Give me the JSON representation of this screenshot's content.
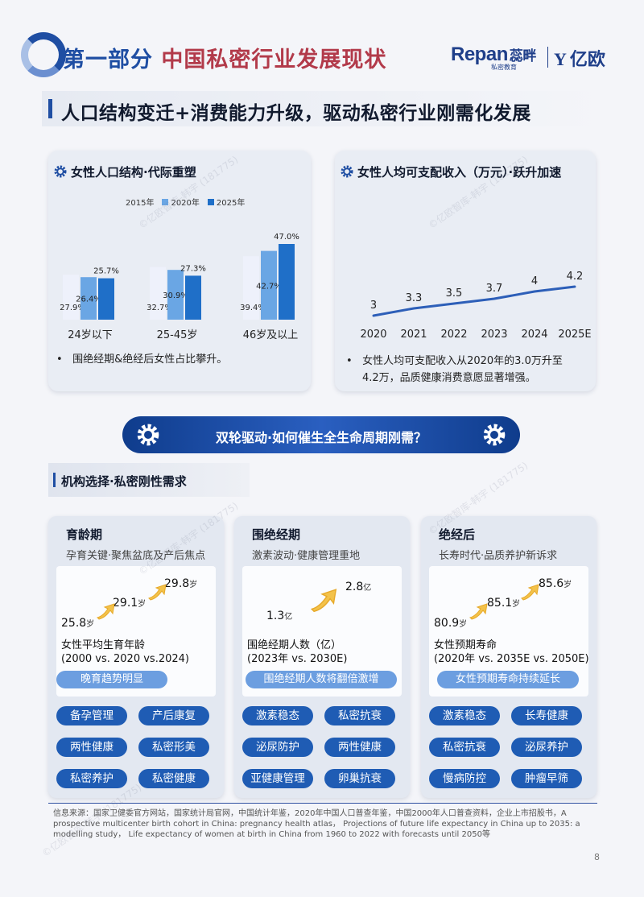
{
  "header": {
    "title_part": "第一部分",
    "title_main": "中国私密行业发展现状",
    "logo_repan": "Repan",
    "logo_repan_cn": "蕊畔",
    "logo_repan_sub": "私密教育",
    "logo_yiou": "亿欧"
  },
  "subtitle": "人口结构变迁+消费能力升级，驱动私密行业刚需化发展",
  "left_panel": {
    "title": "女性人口结构·代际重塑",
    "legend": [
      "2015年",
      "2020年",
      "2025年"
    ],
    "bullet": "围绝经期&绝经后女性占比攀升。"
  },
  "right_panel": {
    "title": "女性人均可支配收入（万元）·跃升加速",
    "bullet_line1": "女性人均可支配收入从2020年的3.0万升至",
    "bullet_line2": "4.2万，品质健康消费意愿显著增强。"
  },
  "chart_data": [
    {
      "type": "bar",
      "title": "女性人口结构·代际重塑",
      "categories": [
        "24岁以下",
        "25-45岁",
        "46岁及以上"
      ],
      "series": [
        {
          "name": "2015年",
          "values": [
            27.9,
            32.7,
            39.4
          ],
          "labels": [
            "27.9%",
            "32.7%",
            "39.4%"
          ]
        },
        {
          "name": "2020年",
          "values": [
            26.4,
            30.9,
            42.7
          ],
          "labels": [
            "26.4%",
            "30.9%",
            "42.7%"
          ]
        },
        {
          "name": "2025年",
          "values": [
            25.7,
            27.3,
            47.0
          ],
          "labels": [
            "25.7%",
            "27.3%",
            "47.0%"
          ]
        }
      ],
      "colors": [
        "#eef1fb",
        "#6aa6e4",
        "#1f6fc8"
      ],
      "legend": "top",
      "grid": false
    },
    {
      "type": "line",
      "title": "女性人均可支配收入（万元）·跃升加速",
      "x": [
        "2020",
        "2021",
        "2022",
        "2023",
        "2024",
        "2025E"
      ],
      "series": [
        {
          "values": [
            3.0,
            3.3,
            3.5,
            3.7,
            4.0,
            4.2
          ],
          "labels": [
            "3",
            "3.3",
            "3.5",
            "3.7",
            "4",
            "4.2"
          ]
        }
      ],
      "color": "#2d5fb8",
      "ylim": [
        2.0,
        5.0
      ],
      "grid": false
    }
  ],
  "banner": "双轮驱动·如何催生全生命周期刚需？",
  "section_heading": "机构选择·私密刚性需求",
  "cards": [
    {
      "title": "育龄期",
      "subtitle": "孕育关键·聚焦盆底及产后焦点",
      "numbers": [
        {
          "value": "25.8",
          "unit": "岁"
        },
        {
          "value": "29.1",
          "unit": "岁"
        },
        {
          "value": "29.8",
          "unit": "岁"
        }
      ],
      "metric_line1": "女性平均生育年龄",
      "metric_line2": "(2000 vs. 2020 vs.2024)",
      "highlight": "晚育趋势明显",
      "tags": [
        "备孕管理",
        "产后康复",
        "两性健康",
        "私密形美",
        "私密养护",
        "私密健康"
      ]
    },
    {
      "title": "围绝经期",
      "subtitle": "激素波动·健康管理重地",
      "numbers": [
        {
          "value": "1.3",
          "unit": "亿"
        },
        {
          "value": "2.8",
          "unit": "亿"
        }
      ],
      "metric_line1": "围绝经期人数（亿）",
      "metric_line2": "(2023年 vs. 2030E)",
      "highlight": "围绝经期人数将翻倍激增",
      "tags": [
        "激素稳态",
        "私密抗衰",
        "泌尿防护",
        "两性健康",
        "亚健康管理",
        "卵巢抗衰"
      ]
    },
    {
      "title": "绝经后",
      "subtitle": "长寿时代·品质养护新诉求",
      "numbers": [
        {
          "value": "80.9",
          "unit": "岁"
        },
        {
          "value": "85.1",
          "unit": "岁"
        },
        {
          "value": "85.6",
          "unit": "岁"
        }
      ],
      "metric_line1": "女性预期寿命",
      "metric_line2": "(2020年 vs. 2035E vs. 2050E)",
      "highlight": "女性预期寿命持续延长",
      "tags": [
        "激素稳态",
        "长寿健康",
        "私密抗衰",
        "泌尿养护",
        "慢病防控",
        "肿瘤早筛"
      ]
    }
  ],
  "footer": {
    "source": "信息来源：国家卫健委官方网站，国家统计局官网，中国统计年鉴，2020年中国人口普查年鉴，中国2000年人口普查资料，企业上市招股书，A prospective multicenter birth cohort in China: pregnancy health atlas， Projections of future life expectancy in China up to 2035: a modelling study， Life expectancy of women at birth in China from 1960 to 2022 with forecasts until 2050等",
    "page": "8"
  },
  "watermark": "©亿欧智库-韩宇 (181775)"
}
